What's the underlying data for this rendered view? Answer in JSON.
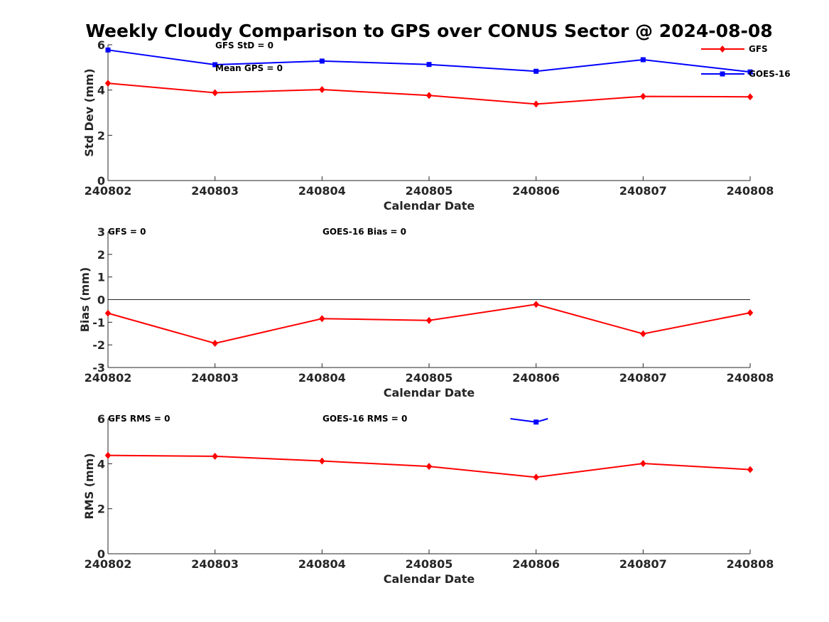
{
  "figure_title": "Weekly Cloudy Comparison to GPS over CONUS Sector @ 2024-08-08",
  "legend": {
    "placement": "top-right",
    "entries": [
      {
        "label": "GFS",
        "color": "#ff0000",
        "marker": "diamond"
      },
      {
        "label": "GOES-16",
        "color": "#0000ff",
        "marker": "square"
      }
    ]
  },
  "chart_data": [
    {
      "type": "line",
      "xlabel": "Calendar Date",
      "ylabel": "Std Dev (mm)",
      "categories": [
        "240802",
        "240803",
        "240804",
        "240805",
        "240806",
        "240807",
        "240808"
      ],
      "ylim": [
        0,
        6
      ],
      "yticks": [
        "0",
        "2",
        "4",
        "6"
      ],
      "grid": false,
      "zero_line": false,
      "annotations": [
        "GFS StD = 0",
        "Mean GPS = 0"
      ],
      "series": [
        {
          "name": "GFS",
          "color": "#ff0000",
          "marker": "diamond",
          "values": [
            4.3,
            3.88,
            4.02,
            3.76,
            3.38,
            3.72,
            3.7
          ]
        },
        {
          "name": "GOES-16",
          "color": "#0000ff",
          "marker": "square",
          "values": [
            5.77,
            5.12,
            5.28,
            5.13,
            4.83,
            5.34,
            4.8
          ]
        }
      ]
    },
    {
      "type": "line",
      "xlabel": "Calendar Date",
      "ylabel": "Bias (mm)",
      "categories": [
        "240802",
        "240803",
        "240804",
        "240805",
        "240806",
        "240807",
        "240808"
      ],
      "ylim": [
        -3,
        3
      ],
      "yticks": [
        "-3",
        "-2",
        "-1",
        "0",
        "1",
        "2",
        "3"
      ],
      "grid": false,
      "zero_line": true,
      "annotations": [
        "GFS = 0",
        "GOES-16 Bias  = 0"
      ],
      "series": [
        {
          "name": "GFS",
          "color": "#ff0000",
          "marker": "diamond",
          "values": [
            -0.6,
            -1.93,
            -0.84,
            -0.92,
            -0.21,
            -1.51,
            -0.58
          ]
        }
      ]
    },
    {
      "type": "line",
      "xlabel": "Calendar Date",
      "ylabel": "RMS (mm)",
      "categories": [
        "240802",
        "240803",
        "240804",
        "240805",
        "240806",
        "240807",
        "240808"
      ],
      "ylim": [
        0,
        6
      ],
      "yticks": [
        "0",
        "2",
        "4",
        "6"
      ],
      "grid": false,
      "zero_line": false,
      "annotations": [
        "GFS RMS = 0",
        "GOES-16 RMS = 0"
      ],
      "series": [
        {
          "name": "GFS",
          "color": "#ff0000",
          "marker": "diamond",
          "values": [
            4.37,
            4.33,
            4.12,
            3.88,
            3.4,
            4.01,
            3.74
          ]
        },
        {
          "name": "GOES-16",
          "color": "#0000ff",
          "marker": "square",
          "values": [
            null,
            null,
            null,
            null,
            5.85,
            null,
            null
          ],
          "partial_segments": {
            "left_y": 6.0,
            "right_y": 6.0
          }
        }
      ]
    }
  ]
}
